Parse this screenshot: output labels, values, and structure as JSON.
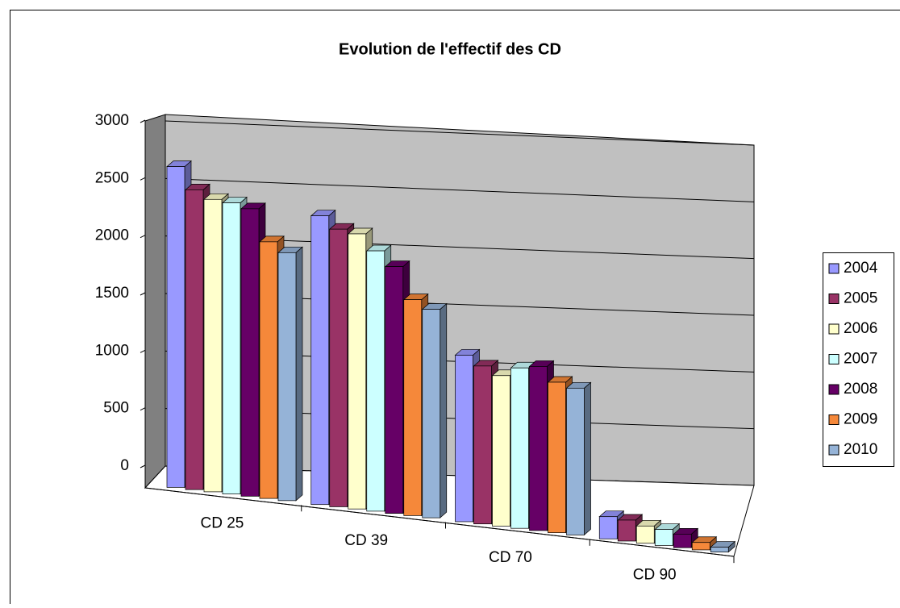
{
  "chart_data": {
    "type": "bar3d",
    "title": "Evolution de l'effectif des CD",
    "categories": [
      "CD 25",
      "CD 39",
      "CD 70",
      "CD 90"
    ],
    "series": [
      {
        "name": "2004",
        "color": "#9999ff",
        "values": [
          2600,
          2340,
          1350,
          180
        ]
      },
      {
        "name": "2005",
        "color": "#993366",
        "values": [
          2430,
          2250,
          1280,
          170
        ]
      },
      {
        "name": "2006",
        "color": "#ffffcc",
        "values": [
          2370,
          2230,
          1220,
          140
        ]
      },
      {
        "name": "2007",
        "color": "#ccffff",
        "values": [
          2360,
          2110,
          1300,
          130
        ]
      },
      {
        "name": "2008",
        "color": "#660066",
        "values": [
          2330,
          2000,
          1330,
          110
        ]
      },
      {
        "name": "2009",
        "color": "#f5883a",
        "values": [
          2080,
          1750,
          1220,
          60
        ]
      },
      {
        "name": "2010",
        "color": "#95b3d7",
        "values": [
          2010,
          1690,
          1190,
          40
        ]
      }
    ],
    "ylim": [
      0,
      3000
    ],
    "yticks": [
      0,
      500,
      1000,
      1500,
      2000,
      2500,
      3000
    ],
    "grid": true,
    "legend": "right"
  }
}
